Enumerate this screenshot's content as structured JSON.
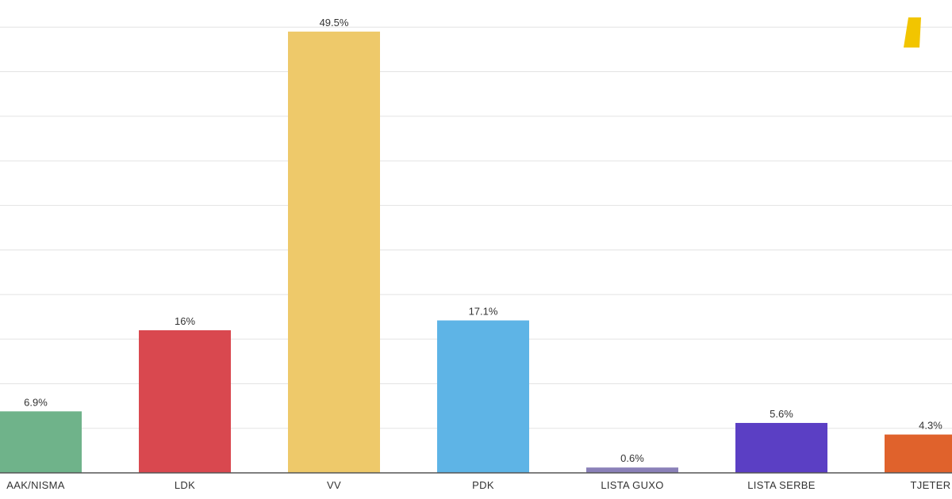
{
  "chart_data": {
    "type": "bar",
    "title": "",
    "xlabel": "",
    "ylabel": "",
    "ylim": [
      0,
      51
    ],
    "grid": true,
    "categories": [
      "AAK/NISMA",
      "LDK",
      "VV",
      "PDK",
      "LISTA GUXO",
      "LISTA SERBE",
      "TJETER"
    ],
    "values": [
      6.9,
      16,
      49.5,
      17.1,
      0.6,
      5.6,
      4.3
    ],
    "value_labels": [
      "6.9%",
      "16%",
      "49.5%",
      "17.1%",
      "0.6%",
      "5.6%",
      "4.3%"
    ],
    "colors": [
      "#6fb38a",
      "#d9484f",
      "#eec96a",
      "#5eb4e6",
      "#8a80b8",
      "#5b3fc4",
      "#e0622c"
    ]
  },
  "logo": {
    "name": "yellow-logo-mark",
    "color": "#f2c500"
  }
}
